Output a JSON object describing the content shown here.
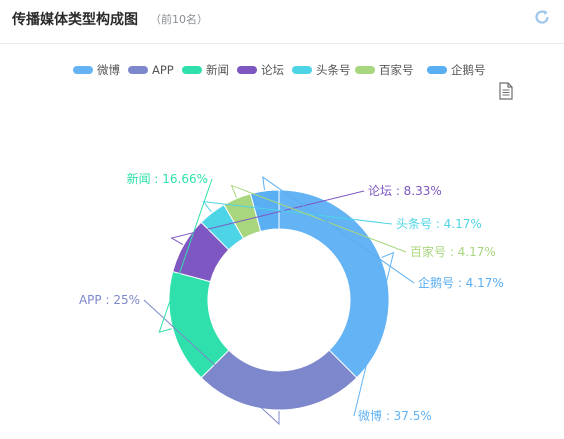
{
  "header": {
    "title": "传播媒体类型构成图",
    "subtitle": "（前10名）",
    "refresh_icon": "refresh-icon"
  },
  "toolbar": {
    "save_icon": "document-icon"
  },
  "chart_data": {
    "type": "pie",
    "variant": "donut",
    "legend_position": "top-center",
    "series": [
      {
        "name": "微博",
        "value": 37.5,
        "label": "微博 : 37.5%",
        "color": "#63b3f5"
      },
      {
        "name": "APP",
        "value": 25,
        "label": "APP : 25%",
        "color": "#7d88cc"
      },
      {
        "name": "新闻",
        "value": 16.66,
        "label": "新闻 : 16.66%",
        "color": "#2fe0ac"
      },
      {
        "name": "论坛",
        "value": 8.33,
        "label": "论坛 : 8.33%",
        "color": "#7e57c2"
      },
      {
        "name": "头条号",
        "value": 4.17,
        "label": "头条号 : 4.17%",
        "color": "#4dd4e6"
      },
      {
        "name": "百家号",
        "value": 4.17,
        "label": "百家号 : 4.17%",
        "color": "#a8d67e"
      },
      {
        "name": "企鹅号",
        "value": 4.17,
        "label": "企鹅号 : 4.17%",
        "color": "#5aaef2"
      }
    ]
  }
}
